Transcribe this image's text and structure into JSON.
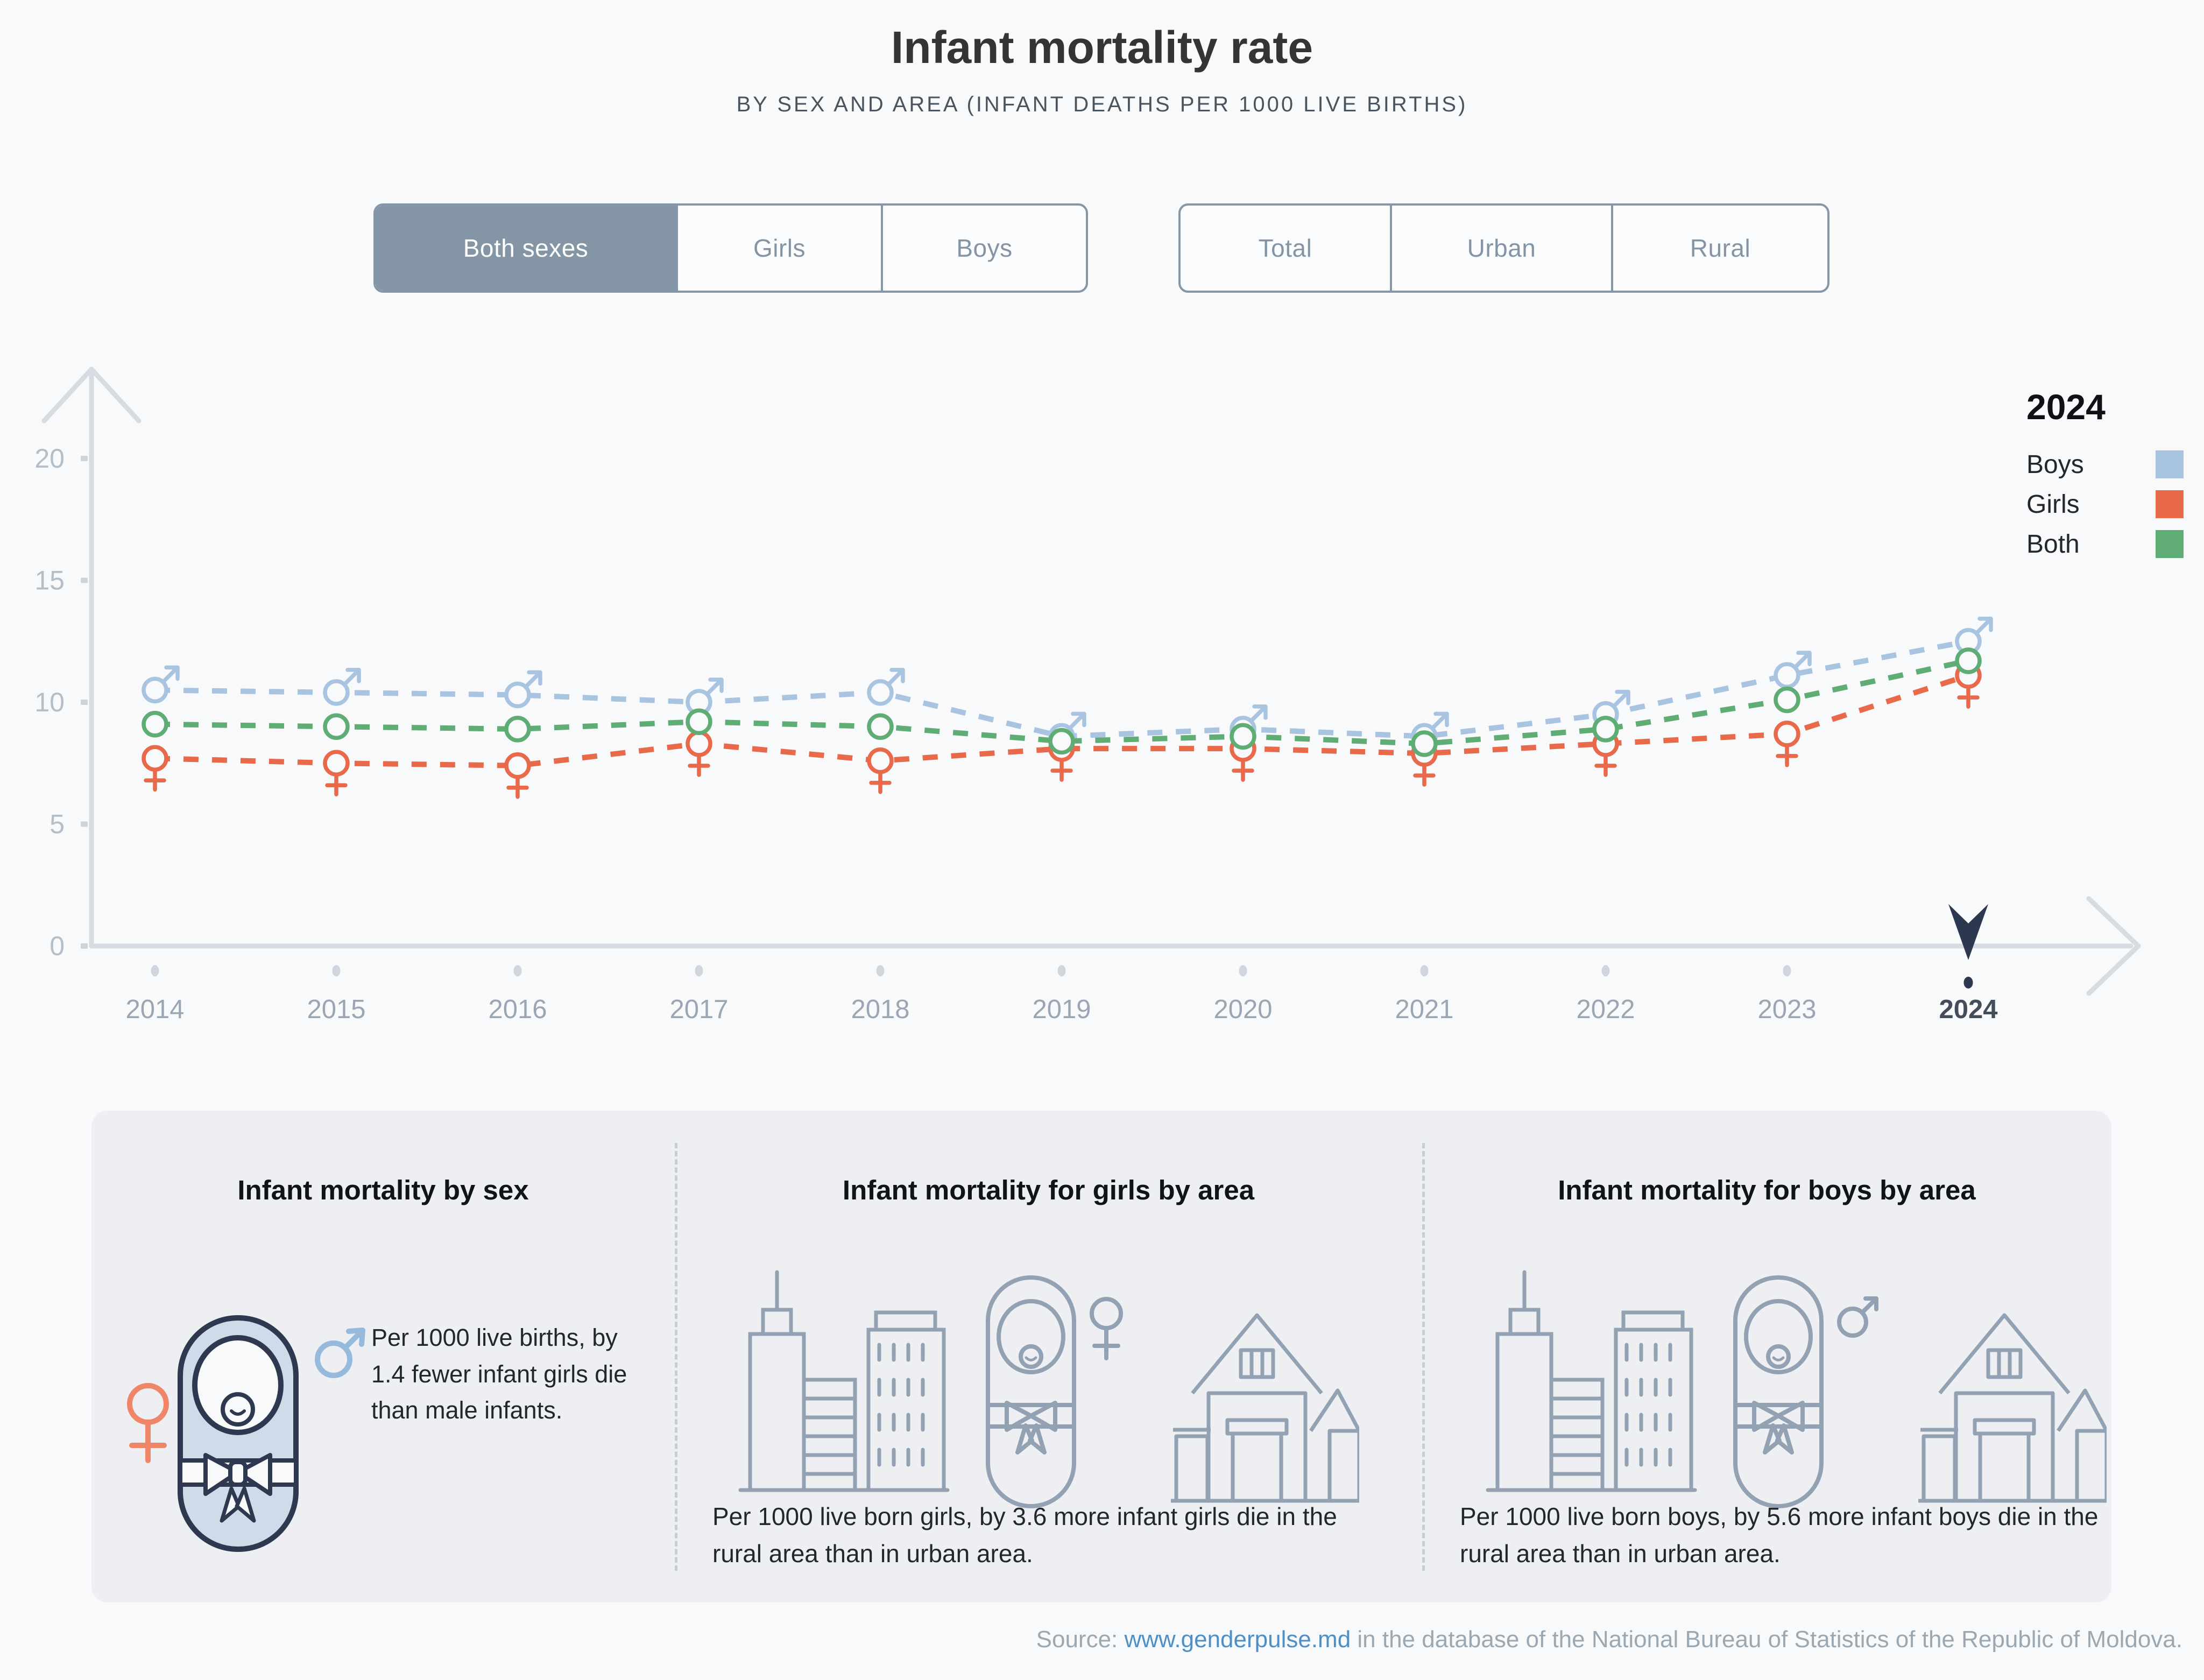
{
  "title": "Infant mortality rate",
  "subtitle": "BY SEX AND AREA (INFANT DEATHS PER 1000 LIVE BIRTHS)",
  "controls": {
    "sex": {
      "options": [
        "Both sexes",
        "Girls",
        "Boys"
      ],
      "selected": "Both sexes"
    },
    "area": {
      "options": [
        "Total",
        "Urban",
        "Rural"
      ],
      "selected": ""
    }
  },
  "legend": {
    "year": "2024",
    "entries": [
      {
        "label": "Boys",
        "color": "#a9c4e1"
      },
      {
        "label": "Girls",
        "color": "#e9694b"
      },
      {
        "label": "Both",
        "color": "#5fad74"
      }
    ]
  },
  "chart_data": {
    "type": "line",
    "x": [
      2014,
      2015,
      2016,
      2017,
      2018,
      2019,
      2020,
      2021,
      2022,
      2023,
      2024
    ],
    "series": [
      {
        "name": "Boys",
        "marker": "male",
        "color": "#a9c4e1",
        "values": [
          10.5,
          10.4,
          10.3,
          10.0,
          10.4,
          8.6,
          8.9,
          8.6,
          9.5,
          11.1,
          12.5
        ]
      },
      {
        "name": "Girls",
        "marker": "female",
        "color": "#e9694b",
        "values": [
          7.7,
          7.5,
          7.4,
          8.3,
          7.6,
          8.1,
          8.1,
          7.9,
          8.3,
          8.7,
          11.1
        ]
      },
      {
        "name": "Both",
        "marker": "circle",
        "color": "#5fad74",
        "values": [
          9.1,
          9.0,
          8.9,
          9.2,
          9.0,
          8.4,
          8.6,
          8.3,
          8.9,
          10.1,
          11.7
        ]
      }
    ],
    "title": "Infant mortality rate",
    "xlabel": "",
    "ylabel": "",
    "ylim": [
      0,
      20
    ],
    "yticks": [
      0,
      5,
      10,
      15,
      20
    ],
    "selected_year": 2024,
    "grid": false,
    "legend_position": "top-right",
    "unit": "infant deaths per 1000 live births"
  },
  "cards": [
    {
      "title": "Infant mortality by sex",
      "text": "Per 1000 live births, by 1.4 fewer infant girls die than male infants."
    },
    {
      "title": "Infant mortality for girls by area",
      "text": "Per 1000 live born girls, by 3.6 more infant girls die in the rural area than in urban area."
    },
    {
      "title": "Infant mortality for boys by area",
      "text": "Per 1000 live born boys, by 5.6 more infant boys die in the rural area than in urban area."
    }
  ],
  "source": {
    "label": "Source: ",
    "link": "www.genderpulse.md",
    "rest": " in the database of the National Bureau of Statistics of the Republic of Moldova."
  },
  "theme": {
    "page_bg": "#f8f9fa",
    "panel_bg": "#edeff2",
    "slate": "#8496a5",
    "border": "#8597a6",
    "axis": "#d6dce2",
    "tick": "#ccd3da",
    "tick_label": "#b4bec9",
    "year_label": "#9aa6b4",
    "year_label_selected": "#444e5b",
    "dot": "#cfd6de",
    "selected_navy": "#2c3850",
    "icon_line": "#93a2b2",
    "baby_fill": "#cfdbe9",
    "baby_outline": "#2e3950",
    "female_icon": "#ef8668",
    "male_icon": "#95badb",
    "link": "#4e8fc6",
    "muted": "#9ba8b2"
  }
}
